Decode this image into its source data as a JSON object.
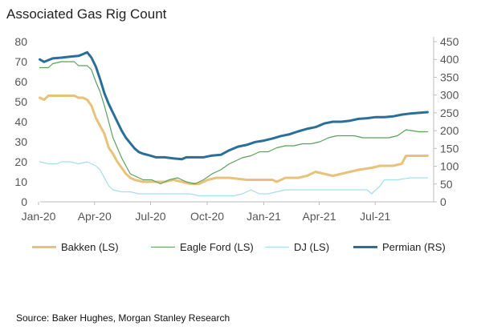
{
  "title": "Associated Gas Rig Count",
  "source": "Source: Baker Hughes, Morgan Stanley Research",
  "chart_data": {
    "type": "line",
    "title": "Associated Gas Rig Count",
    "left_axis": {
      "min": 0,
      "max": 80,
      "ticks": [
        0,
        10,
        20,
        30,
        40,
        50,
        60,
        70,
        80
      ]
    },
    "right_axis": {
      "min": 0,
      "max": 450,
      "ticks": [
        0,
        50,
        100,
        150,
        200,
        250,
        300,
        350,
        400,
        450
      ]
    },
    "x_range": [
      "2020-01-01",
      "2021-09-30"
    ],
    "x_tick_labels": [
      {
        "date": "2020-01-01",
        "label": "Jan-20"
      },
      {
        "date": "2020-04-01",
        "label": "Apr-20"
      },
      {
        "date": "2020-07-01",
        "label": "Jul-20"
      },
      {
        "date": "2020-10-01",
        "label": "Oct-20"
      },
      {
        "date": "2021-01-01",
        "label": "Jan-21"
      },
      {
        "date": "2021-04-01",
        "label": "Apr-21"
      },
      {
        "date": "2021-07-01",
        "label": "Jul-21"
      }
    ],
    "grid": false,
    "legend_position": "bottom",
    "series": [
      {
        "name": "Bakken (LS)",
        "axis": "left",
        "color": "#e8c27a",
        "stroke": "thick",
        "points": [
          [
            "2020-01-03",
            52
          ],
          [
            "2020-01-10",
            51
          ],
          [
            "2020-01-17",
            53
          ],
          [
            "2020-01-31",
            53
          ],
          [
            "2020-02-28",
            53
          ],
          [
            "2020-03-06",
            52
          ],
          [
            "2020-03-13",
            52
          ],
          [
            "2020-03-20",
            51
          ],
          [
            "2020-03-27",
            48
          ],
          [
            "2020-04-03",
            42
          ],
          [
            "2020-04-10",
            38
          ],
          [
            "2020-04-17",
            34
          ],
          [
            "2020-04-24",
            27
          ],
          [
            "2020-05-01",
            24
          ],
          [
            "2020-05-08",
            20
          ],
          [
            "2020-05-15",
            17
          ],
          [
            "2020-05-22",
            14
          ],
          [
            "2020-05-29",
            12
          ],
          [
            "2020-06-05",
            11
          ],
          [
            "2020-06-19",
            10
          ],
          [
            "2020-07-03",
            10
          ],
          [
            "2020-07-24",
            10
          ],
          [
            "2020-08-07",
            11
          ],
          [
            "2020-08-21",
            10
          ],
          [
            "2020-09-04",
            9
          ],
          [
            "2020-09-18",
            9
          ],
          [
            "2020-10-02",
            11
          ],
          [
            "2020-10-16",
            12
          ],
          [
            "2020-11-06",
            12
          ],
          [
            "2020-12-04",
            11
          ],
          [
            "2020-12-25",
            11
          ],
          [
            "2021-01-15",
            11
          ],
          [
            "2021-01-22",
            10
          ],
          [
            "2021-02-05",
            12
          ],
          [
            "2021-02-26",
            12
          ],
          [
            "2021-03-12",
            13
          ],
          [
            "2021-03-26",
            15
          ],
          [
            "2021-04-09",
            14
          ],
          [
            "2021-04-23",
            13
          ],
          [
            "2021-05-07",
            14
          ],
          [
            "2021-05-21",
            15
          ],
          [
            "2021-06-04",
            16
          ],
          [
            "2021-06-25",
            17
          ],
          [
            "2021-07-09",
            18
          ],
          [
            "2021-07-30",
            18
          ],
          [
            "2021-08-13",
            19
          ],
          [
            "2021-08-20",
            23
          ],
          [
            "2021-09-10",
            23
          ],
          [
            "2021-09-24",
            23
          ]
        ]
      },
      {
        "name": "Eagle Ford (LS)",
        "axis": "left",
        "color": "#5aa05a",
        "stroke": "thin",
        "points": [
          [
            "2020-01-03",
            67
          ],
          [
            "2020-01-17",
            67
          ],
          [
            "2020-01-24",
            69
          ],
          [
            "2020-02-07",
            70
          ],
          [
            "2020-02-28",
            70
          ],
          [
            "2020-03-06",
            68
          ],
          [
            "2020-03-20",
            68
          ],
          [
            "2020-03-27",
            66
          ],
          [
            "2020-04-03",
            60
          ],
          [
            "2020-04-10",
            55
          ],
          [
            "2020-04-17",
            48
          ],
          [
            "2020-04-24",
            40
          ],
          [
            "2020-05-01",
            32
          ],
          [
            "2020-05-08",
            27
          ],
          [
            "2020-05-15",
            22
          ],
          [
            "2020-05-22",
            18
          ],
          [
            "2020-05-29",
            14
          ],
          [
            "2020-06-05",
            13
          ],
          [
            "2020-06-12",
            12
          ],
          [
            "2020-06-19",
            11
          ],
          [
            "2020-07-03",
            11
          ],
          [
            "2020-07-10",
            10
          ],
          [
            "2020-07-17",
            9
          ],
          [
            "2020-07-31",
            11
          ],
          [
            "2020-08-14",
            12
          ],
          [
            "2020-08-28",
            10
          ],
          [
            "2020-09-11",
            9
          ],
          [
            "2020-09-25",
            11
          ],
          [
            "2020-10-09",
            14
          ],
          [
            "2020-10-23",
            16
          ],
          [
            "2020-11-06",
            19
          ],
          [
            "2020-11-27",
            22
          ],
          [
            "2020-12-11",
            23
          ],
          [
            "2020-12-25",
            25
          ],
          [
            "2021-01-08",
            25
          ],
          [
            "2021-01-22",
            27
          ],
          [
            "2021-02-05",
            28
          ],
          [
            "2021-02-19",
            28
          ],
          [
            "2021-03-05",
            29
          ],
          [
            "2021-03-19",
            29
          ],
          [
            "2021-04-02",
            30
          ],
          [
            "2021-04-16",
            32
          ],
          [
            "2021-04-30",
            33
          ],
          [
            "2021-05-14",
            33
          ],
          [
            "2021-05-28",
            33
          ],
          [
            "2021-06-11",
            32
          ],
          [
            "2021-06-25",
            32
          ],
          [
            "2021-07-09",
            32
          ],
          [
            "2021-07-23",
            32
          ],
          [
            "2021-08-06",
            33
          ],
          [
            "2021-08-20",
            36
          ],
          [
            "2021-09-10",
            35
          ],
          [
            "2021-09-24",
            35
          ]
        ]
      },
      {
        "name": "DJ (LS)",
        "axis": "left",
        "color": "#a6dde8",
        "stroke": "thin",
        "points": [
          [
            "2020-01-03",
            20
          ],
          [
            "2020-01-17",
            19
          ],
          [
            "2020-01-31",
            19
          ],
          [
            "2020-02-07",
            20
          ],
          [
            "2020-02-21",
            20
          ],
          [
            "2020-03-06",
            19
          ],
          [
            "2020-03-20",
            20
          ],
          [
            "2020-03-27",
            19
          ],
          [
            "2020-04-03",
            18
          ],
          [
            "2020-04-10",
            16
          ],
          [
            "2020-04-17",
            12
          ],
          [
            "2020-04-24",
            8
          ],
          [
            "2020-05-01",
            6
          ],
          [
            "2020-05-15",
            5
          ],
          [
            "2020-05-29",
            5
          ],
          [
            "2020-06-12",
            4
          ],
          [
            "2020-07-10",
            4
          ],
          [
            "2020-08-07",
            4
          ],
          [
            "2020-09-04",
            4
          ],
          [
            "2020-09-18",
            3
          ],
          [
            "2020-10-23",
            3
          ],
          [
            "2020-11-13",
            3
          ],
          [
            "2020-11-27",
            4
          ],
          [
            "2020-12-11",
            6
          ],
          [
            "2020-12-25",
            4
          ],
          [
            "2021-01-08",
            4
          ],
          [
            "2021-01-22",
            5
          ],
          [
            "2021-02-05",
            6
          ],
          [
            "2021-03-05",
            6
          ],
          [
            "2021-04-02",
            6
          ],
          [
            "2021-05-07",
            6
          ],
          [
            "2021-06-04",
            6
          ],
          [
            "2021-06-18",
            6
          ],
          [
            "2021-06-25",
            4
          ],
          [
            "2021-07-09",
            8
          ],
          [
            "2021-07-16",
            11
          ],
          [
            "2021-08-06",
            11
          ],
          [
            "2021-08-27",
            12
          ],
          [
            "2021-09-24",
            12
          ]
        ]
      },
      {
        "name": "Permian (RS)",
        "axis": "right",
        "color": "#2a6f98",
        "stroke": "thick",
        "points": [
          [
            "2020-01-03",
            400
          ],
          [
            "2020-01-10",
            393
          ],
          [
            "2020-01-24",
            403
          ],
          [
            "2020-02-07",
            405
          ],
          [
            "2020-02-21",
            408
          ],
          [
            "2020-03-06",
            410
          ],
          [
            "2020-03-13",
            415
          ],
          [
            "2020-03-20",
            420
          ],
          [
            "2020-03-27",
            405
          ],
          [
            "2020-04-03",
            380
          ],
          [
            "2020-04-10",
            345
          ],
          [
            "2020-04-17",
            305
          ],
          [
            "2020-04-24",
            275
          ],
          [
            "2020-05-01",
            250
          ],
          [
            "2020-05-08",
            225
          ],
          [
            "2020-05-15",
            200
          ],
          [
            "2020-05-22",
            180
          ],
          [
            "2020-05-29",
            165
          ],
          [
            "2020-06-05",
            150
          ],
          [
            "2020-06-12",
            140
          ],
          [
            "2020-06-19",
            135
          ],
          [
            "2020-06-26",
            132
          ],
          [
            "2020-07-10",
            125
          ],
          [
            "2020-07-24",
            125
          ],
          [
            "2020-08-07",
            122
          ],
          [
            "2020-08-21",
            120
          ],
          [
            "2020-08-28",
            125
          ],
          [
            "2020-09-11",
            125
          ],
          [
            "2020-09-25",
            125
          ],
          [
            "2020-10-09",
            130
          ],
          [
            "2020-10-23",
            132
          ],
          [
            "2020-11-06",
            145
          ],
          [
            "2020-11-20",
            155
          ],
          [
            "2020-12-04",
            160
          ],
          [
            "2020-12-18",
            168
          ],
          [
            "2021-01-01",
            172
          ],
          [
            "2021-01-15",
            178
          ],
          [
            "2021-01-29",
            185
          ],
          [
            "2021-02-12",
            190
          ],
          [
            "2021-02-26",
            198
          ],
          [
            "2021-03-12",
            205
          ],
          [
            "2021-03-26",
            210
          ],
          [
            "2021-04-09",
            220
          ],
          [
            "2021-04-23",
            225
          ],
          [
            "2021-05-07",
            225
          ],
          [
            "2021-05-21",
            228
          ],
          [
            "2021-06-04",
            233
          ],
          [
            "2021-06-18",
            235
          ],
          [
            "2021-07-02",
            238
          ],
          [
            "2021-07-16",
            238
          ],
          [
            "2021-07-30",
            240
          ],
          [
            "2021-08-13",
            245
          ],
          [
            "2021-08-27",
            248
          ],
          [
            "2021-09-10",
            250
          ],
          [
            "2021-09-24",
            252
          ]
        ]
      }
    ]
  }
}
